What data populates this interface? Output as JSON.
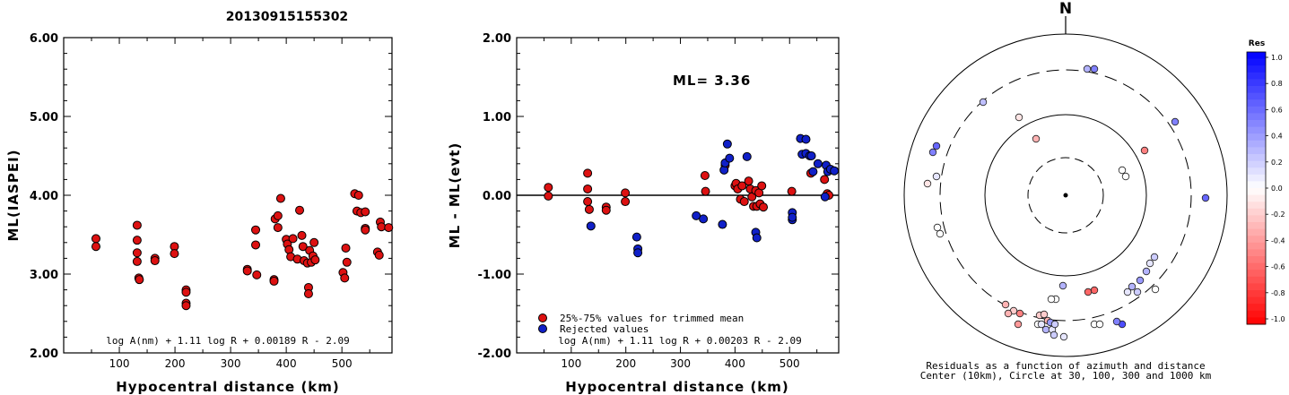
{
  "title": "20130915155302",
  "colors": {
    "accepted": "#dd1111",
    "rejected": "#1020c8"
  },
  "chart_data": [
    {
      "type": "scatter",
      "ylabel": "ML(IASPEI)",
      "xlabel": "Hypocentral distance (km)",
      "xlim": [
        0,
        590
      ],
      "ylim": [
        2.0,
        6.0
      ],
      "xticks": [
        "100",
        "200",
        "300",
        "400",
        "500"
      ],
      "yticks": [
        "2.00",
        "3.00",
        "4.00",
        "5.00",
        "6.00"
      ],
      "formula": "log A(nm) + 1.11 log R + 0.00189 R - 2.09",
      "points": [
        [
          58,
          3.45
        ],
        [
          58,
          3.35
        ],
        [
          132,
          3.62
        ],
        [
          132,
          3.43
        ],
        [
          132,
          3.27
        ],
        [
          132,
          3.16
        ],
        [
          135,
          2.95
        ],
        [
          136,
          2.93
        ],
        [
          164,
          3.2
        ],
        [
          164,
          3.17
        ],
        [
          199,
          3.35
        ],
        [
          199,
          3.26
        ],
        [
          220,
          2.8
        ],
        [
          220,
          2.77
        ],
        [
          220,
          2.63
        ],
        [
          220,
          2.6
        ],
        [
          330,
          3.06
        ],
        [
          330,
          3.04
        ],
        [
          345,
          3.56
        ],
        [
          345,
          3.37
        ],
        [
          347,
          2.99
        ],
        [
          378,
          2.93
        ],
        [
          378,
          2.91
        ],
        [
          380,
          3.7
        ],
        [
          385,
          3.59
        ],
        [
          385,
          3.74
        ],
        [
          390,
          3.96
        ],
        [
          400,
          3.44
        ],
        [
          402,
          3.38
        ],
        [
          405,
          3.31
        ],
        [
          408,
          3.22
        ],
        [
          412,
          3.45
        ],
        [
          420,
          3.19
        ],
        [
          424,
          3.81
        ],
        [
          428,
          3.49
        ],
        [
          430,
          3.35
        ],
        [
          432,
          3.17
        ],
        [
          438,
          3.14
        ],
        [
          440,
          2.83
        ],
        [
          440,
          2.75
        ],
        [
          442,
          3.3
        ],
        [
          445,
          3.15
        ],
        [
          448,
          3.23
        ],
        [
          450,
          3.4
        ],
        [
          452,
          3.18
        ],
        [
          502,
          3.02
        ],
        [
          505,
          2.95
        ],
        [
          507,
          3.33
        ],
        [
          509,
          3.15
        ],
        [
          523,
          4.02
        ],
        [
          527,
          3.8
        ],
        [
          530,
          4.0
        ],
        [
          534,
          3.78
        ],
        [
          542,
          3.79
        ],
        [
          542,
          3.58
        ],
        [
          542,
          3.56
        ],
        [
          564,
          3.28
        ],
        [
          567,
          3.24
        ],
        [
          569,
          3.66
        ],
        [
          571,
          3.6
        ],
        [
          584,
          3.59
        ]
      ]
    },
    {
      "type": "scatter",
      "ylabel": "ML - ML(evt)",
      "xlabel": "Hypocentral distance (km)",
      "xlim": [
        0,
        590
      ],
      "ylim": [
        -2.0,
        2.0
      ],
      "xticks": [
        "100",
        "200",
        "300",
        "400",
        "500"
      ],
      "yticks": [
        "-2.00",
        "-1.00",
        "0.00",
        "1.00",
        "2.00"
      ],
      "annotation": "ML= 3.36",
      "legend": [
        "25%-75% values for trimmed mean",
        "Rejected values"
      ],
      "formula": "log A(nm) + 1.11 log R + 0.00203 R - 2.09",
      "accepted": [
        [
          58,
          0.1
        ],
        [
          58,
          -0.01
        ],
        [
          130,
          0.28
        ],
        [
          130,
          0.08
        ],
        [
          130,
          -0.08
        ],
        [
          133,
          -0.18
        ],
        [
          164,
          -0.15
        ],
        [
          164,
          -0.19
        ],
        [
          199,
          0.03
        ],
        [
          199,
          -0.08
        ],
        [
          345,
          0.25
        ],
        [
          346,
          0.05
        ],
        [
          382,
          0.38
        ],
        [
          400,
          0.12
        ],
        [
          402,
          0.15
        ],
        [
          405,
          0.08
        ],
        [
          410,
          -0.05
        ],
        [
          413,
          0.12
        ],
        [
          417,
          -0.08
        ],
        [
          425,
          0.18
        ],
        [
          428,
          0.08
        ],
        [
          431,
          -0.02
        ],
        [
          434,
          -0.14
        ],
        [
          438,
          0.06
        ],
        [
          440,
          -0.14
        ],
        [
          444,
          0.03
        ],
        [
          446,
          -0.11
        ],
        [
          449,
          0.12
        ],
        [
          452,
          -0.15
        ],
        [
          504,
          0.05
        ],
        [
          539,
          0.28
        ],
        [
          564,
          0.2
        ],
        [
          569,
          0.02
        ],
        [
          572,
          0.0
        ]
      ],
      "rejected": [
        [
          136,
          -0.39
        ],
        [
          220,
          -0.53
        ],
        [
          222,
          -0.68
        ],
        [
          222,
          -0.73
        ],
        [
          329,
          -0.26
        ],
        [
          342,
          -0.3
        ],
        [
          377,
          -0.37
        ],
        [
          380,
          0.32
        ],
        [
          382,
          0.41
        ],
        [
          386,
          0.65
        ],
        [
          390,
          0.47
        ],
        [
          422,
          0.49
        ],
        [
          438,
          -0.47
        ],
        [
          440,
          -0.54
        ],
        [
          505,
          -0.22
        ],
        [
          505,
          -0.31
        ],
        [
          505,
          -0.28
        ],
        [
          520,
          0.72
        ],
        [
          523,
          0.52
        ],
        [
          530,
          0.71
        ],
        [
          530,
          0.53
        ],
        [
          537,
          0.5
        ],
        [
          540,
          0.5
        ],
        [
          543,
          0.3
        ],
        [
          552,
          0.4
        ],
        [
          565,
          -0.02
        ],
        [
          567,
          0.38
        ],
        [
          570,
          0.3
        ],
        [
          575,
          0.33
        ],
        [
          582,
          0.31
        ]
      ]
    }
  ],
  "azimuth_plot": {
    "north_label": "N",
    "caption_line1": "Residuals as a function of azimuth and distance",
    "caption_line2": "Center (10km), Circle at 30, 100, 300 and 1000 km",
    "stations": [
      [
        1212,
        77,
        0.3
      ],
      [
        1220,
        77,
        0.5
      ],
      [
        1096,
        114,
        0.25
      ],
      [
        1310,
        136,
        0.5
      ],
      [
        1136,
        131,
        -0.1
      ],
      [
        1155,
        155,
        -0.3
      ],
      [
        1044,
        163,
        0.6
      ],
      [
        1040,
        170,
        0.5
      ],
      [
        1276,
        168,
        -0.5
      ],
      [
        1044,
        197,
        0.1
      ],
      [
        1034,
        205,
        -0.1
      ],
      [
        1251,
        190,
        0.0
      ],
      [
        1255,
        197,
        0.0
      ],
      [
        1344,
        221,
        0.6
      ],
      [
        1045,
        254,
        0.0
      ],
      [
        1048,
        261,
        0.0
      ],
      [
        1287,
        287,
        0.2
      ],
      [
        1282,
        294,
        0.1
      ],
      [
        1278,
        303,
        0.3
      ],
      [
        1271,
        313,
        0.4
      ],
      [
        1262,
        320,
        0.3
      ],
      [
        1257,
        326,
        0.1
      ],
      [
        1268,
        326,
        0.2
      ],
      [
        1288,
        323,
        0.0
      ],
      [
        1185,
        319,
        0.3
      ],
      [
        1177,
        334,
        0.0
      ],
      [
        1172,
        334,
        0.0
      ],
      [
        1220,
        324,
        -0.6
      ],
      [
        1213,
        326,
        -0.6
      ],
      [
        1121,
        340,
        -0.3
      ],
      [
        1130,
        347,
        -0.2
      ],
      [
        1124,
        350,
        -0.3
      ],
      [
        1137,
        350,
        -0.5
      ],
      [
        1135,
        362,
        -0.4
      ],
      [
        1159,
        352,
        -0.2
      ],
      [
        1164,
        351,
        -0.2
      ],
      [
        1168,
        358,
        -0.3
      ],
      [
        1157,
        362,
        0.0
      ],
      [
        1161,
        362,
        0.1
      ],
      [
        1171,
        360,
        0.4
      ],
      [
        1166,
        368,
        0.3
      ],
      [
        1173,
        368,
        0.1
      ],
      [
        1176,
        362,
        0.2
      ],
      [
        1175,
        374,
        0.2
      ],
      [
        1186,
        376,
        0.1
      ],
      [
        1220,
        362,
        0.0
      ],
      [
        1226,
        362,
        0.0
      ],
      [
        1251,
        362,
        0.7
      ],
      [
        1245,
        359,
        0.5
      ]
    ]
  },
  "colorbar": {
    "title": "Res",
    "labels": [
      "1.0",
      "0.8",
      "0.6",
      "0.4",
      "0.2",
      "0.0",
      "-0.2",
      "-0.4",
      "-0.6",
      "-0.8",
      "-1.0"
    ]
  }
}
